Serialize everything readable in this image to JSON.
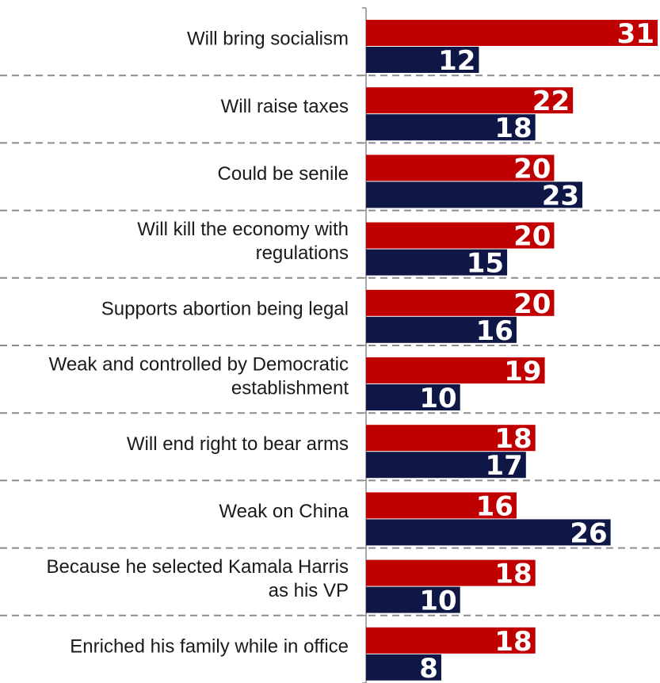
{
  "chart_data": {
    "type": "bar",
    "orientation": "horizontal",
    "categories": [
      "Will bring socialism",
      "Will raise taxes",
      "Could be senile",
      "Will kill the economy with regulations",
      "Supports abortion being legal",
      "Weak and controlled by Democratic establishment",
      "Will end right to bear arms",
      "Weak on China",
      "Because he selected Kamala Harris as his VP",
      "Enriched his family while in office"
    ],
    "category_lines": [
      [
        "Will bring socialism"
      ],
      [
        "Will raise taxes"
      ],
      [
        "Could be senile"
      ],
      [
        "Will kill the economy with",
        "regulations"
      ],
      [
        "Supports abortion being legal"
      ],
      [
        "Weak and controlled by Democratic",
        "establishment"
      ],
      [
        "Will end right to bear arms"
      ],
      [
        "Weak on China"
      ],
      [
        "Because he selected Kamala Harris",
        "as his VP"
      ],
      [
        "Enriched his family while in office"
      ]
    ],
    "series": [
      {
        "values": [
          31,
          22,
          20,
          20,
          20,
          19,
          18,
          16,
          18,
          18
        ],
        "color": "#c00000"
      },
      {
        "values": [
          12,
          18,
          23,
          15,
          16,
          10,
          17,
          26,
          10,
          8
        ],
        "color": "#0f1747"
      }
    ],
    "xlim": [
      0,
      31
    ],
    "grid": "dashed horizontal separators between categories",
    "legend": "none"
  }
}
